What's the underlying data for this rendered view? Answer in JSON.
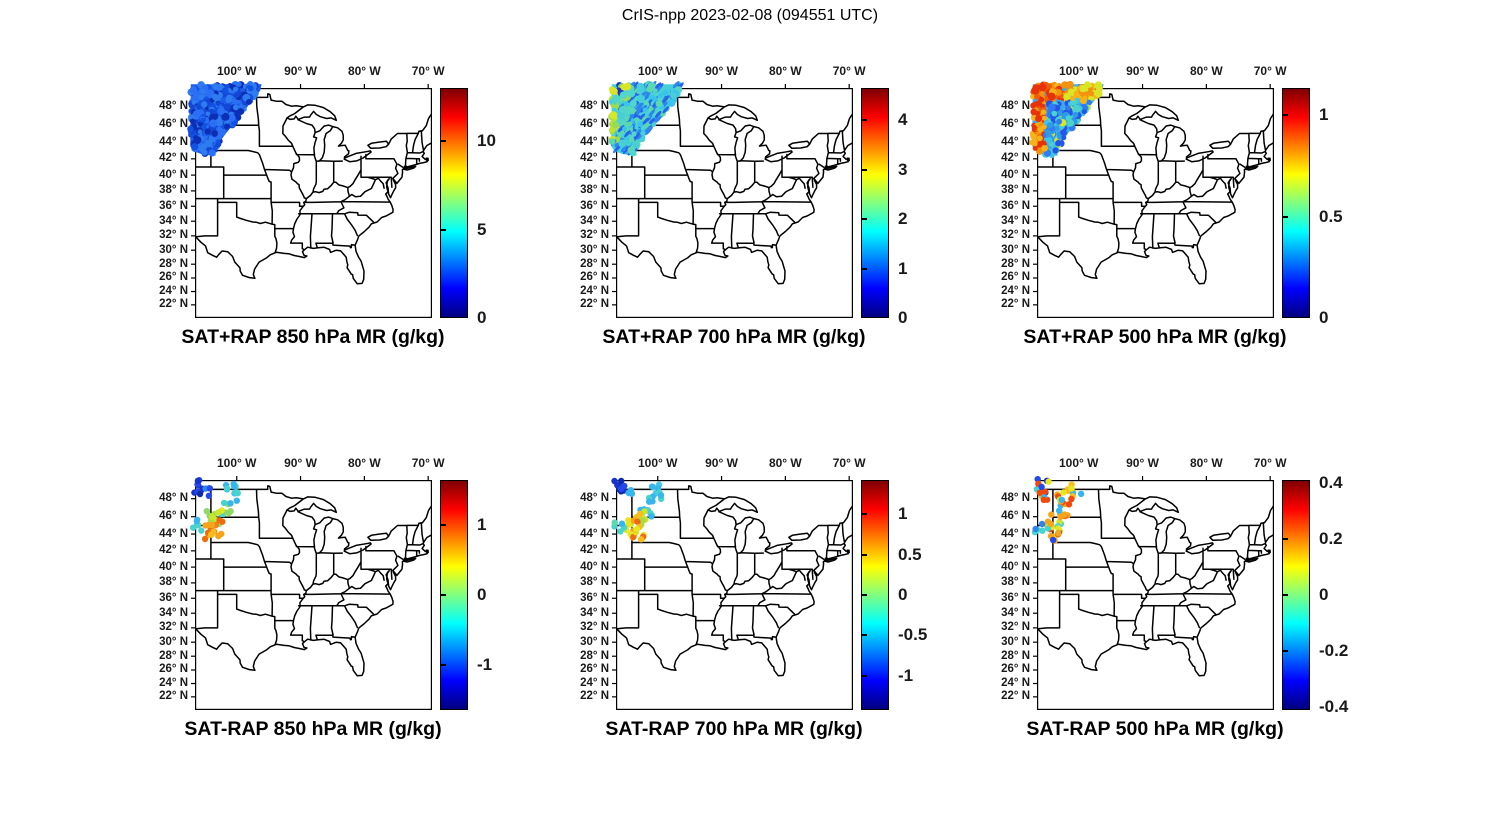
{
  "figure": {
    "title": "CrIS-npp 2023-02-08 (094551 UTC)",
    "background": "#ffffff"
  },
  "axes": {
    "lon_ticks": [
      {
        "label": "100° W",
        "lon": 100
      },
      {
        "label": "90° W",
        "lon": 90
      },
      {
        "label": "80° W",
        "lon": 80
      },
      {
        "label": "70° W",
        "lon": 70
      }
    ],
    "lat_ticks": [
      {
        "label": "48° N",
        "lat": 48
      },
      {
        "label": "46° N",
        "lat": 46
      },
      {
        "label": "44° N",
        "lat": 44
      },
      {
        "label": "42° N",
        "lat": 42
      },
      {
        "label": "40° N",
        "lat": 40
      },
      {
        "label": "38° N",
        "lat": 38
      },
      {
        "label": "36° N",
        "lat": 36
      },
      {
        "label": "34° N",
        "lat": 34
      },
      {
        "label": "32° N",
        "lat": 32
      },
      {
        "label": "30° N",
        "lat": 30
      },
      {
        "label": "28° N",
        "lat": 28
      },
      {
        "label": "26° N",
        "lat": 26
      },
      {
        "label": "24° N",
        "lat": 24
      },
      {
        "label": "22° N",
        "lat": 22
      }
    ],
    "map_extent": {
      "lon_west": 106.54,
      "lon_east": 69.4,
      "lat_south": 20,
      "lat_north": 50
    },
    "projection": "mercator"
  },
  "colors": {
    "colormap": "jet",
    "map_line": "#000000",
    "tick_label": "#1a1a1a"
  },
  "panels": [
    {
      "id": "sat-plus-rap-850",
      "title": "SAT+RAP 850 hPa MR (g/kg)",
      "row": 0,
      "col": 0,
      "kind": "swath",
      "clim": [
        0,
        13
      ],
      "cticks": [
        {
          "v": 0,
          "label": "0"
        },
        {
          "v": 5,
          "label": "5"
        },
        {
          "v": 10,
          "label": "10"
        }
      ]
    },
    {
      "id": "sat-plus-rap-700",
      "title": "SAT+RAP 700 hPa MR (g/kg)",
      "row": 0,
      "col": 1,
      "kind": "swath",
      "clim": [
        0,
        4.65
      ],
      "cticks": [
        {
          "v": 0,
          "label": "0"
        },
        {
          "v": 1,
          "label": "1"
        },
        {
          "v": 2,
          "label": "2"
        },
        {
          "v": 3,
          "label": "3"
        },
        {
          "v": 4,
          "label": "4"
        }
      ]
    },
    {
      "id": "sat-plus-rap-500",
      "title": "SAT+RAP 500 hPa MR (g/kg)",
      "row": 0,
      "col": 2,
      "kind": "swath",
      "clim": [
        0,
        1.135
      ],
      "cticks": [
        {
          "v": 0,
          "label": "0"
        },
        {
          "v": 0.5,
          "label": "0.5"
        },
        {
          "v": 1,
          "label": "1"
        }
      ]
    },
    {
      "id": "sat-minus-rap-850",
      "title": "SAT-RAP 850 hPa MR (g/kg)",
      "row": 1,
      "col": 0,
      "kind": "dots",
      "clim": [
        -1.64,
        1.64
      ],
      "cticks": [
        {
          "v": -1,
          "label": "-1"
        },
        {
          "v": 0,
          "label": "0"
        },
        {
          "v": 1,
          "label": "1"
        }
      ]
    },
    {
      "id": "sat-minus-rap-700",
      "title": "SAT-RAP 700 hPa MR (g/kg)",
      "row": 1,
      "col": 1,
      "kind": "dots",
      "clim": [
        -1.42,
        1.42
      ],
      "cticks": [
        {
          "v": -1,
          "label": "-1"
        },
        {
          "v": -0.5,
          "label": "-0.5"
        },
        {
          "v": 0,
          "label": "0"
        },
        {
          "v": 0.5,
          "label": "0.5"
        },
        {
          "v": 1,
          "label": "1"
        }
      ]
    },
    {
      "id": "sat-minus-rap-500",
      "title": "SAT-RAP 500 hPa MR (g/kg)",
      "row": 1,
      "col": 2,
      "kind": "dots",
      "clim": [
        -0.41,
        0.41
      ],
      "cticks": [
        {
          "v": -0.4,
          "label": "-0.4"
        },
        {
          "v": -0.2,
          "label": "-0.2"
        },
        {
          "v": 0,
          "label": "0"
        },
        {
          "v": 0.2,
          "label": "0.2"
        },
        {
          "v": 0.4,
          "label": "0.4"
        }
      ]
    }
  ],
  "chart_data": [
    {
      "type": "heatmap",
      "title": "SAT+RAP 850 hPa MR (g/kg)",
      "variable": "850 hPa water vapor mixing ratio retrieved from CrIS-npp + RAP",
      "map_extent": {
        "lon": [
          -106.5,
          -69.4
        ],
        "lat": [
          20,
          50
        ]
      },
      "projection": "Mercator",
      "x_tick_labels": [
        "100° W",
        "90° W",
        "80° W",
        "70° W"
      ],
      "y_tick_labels": [
        "48° N",
        "46° N",
        "44° N",
        "42° N",
        "40° N",
        "38° N",
        "36° N",
        "34° N",
        "32° N",
        "30° N",
        "28° N",
        "26° N",
        "24° N",
        "22° N"
      ],
      "colorbar": {
        "colormap": "jet",
        "clim": [
          0,
          13
        ],
        "ticks": [
          0,
          5,
          10
        ]
      },
      "swath": {
        "description": "solid blue satellite overpass swath over Montana / western North Dakota",
        "lon": [
          -107.2,
          -96.1
        ],
        "lat": [
          42.3,
          50.3
        ],
        "approx_values_g_per_kg": [
          1.5,
          3
        ]
      }
    },
    {
      "type": "heatmap",
      "title": "SAT+RAP 700 hPa MR (g/kg)",
      "variable": "700 hPa water vapor mixing ratio retrieved from CrIS-npp + RAP",
      "map_extent": {
        "lon": [
          -106.5,
          -69.4
        ],
        "lat": [
          20,
          50
        ]
      },
      "projection": "Mercator",
      "colorbar": {
        "colormap": "jet",
        "clim": [
          0,
          4.65
        ],
        "ticks": [
          0,
          1,
          2,
          3,
          4
        ]
      },
      "swath": {
        "description": "cyan swath with darker blue diagonal scan streaks and yellow-green patches on its western edge",
        "lon": [
          -107.2,
          -96.1
        ],
        "lat": [
          42.3,
          50.3
        ],
        "approx_values_g_per_kg": [
          1.2,
          3.2
        ]
      }
    },
    {
      "type": "heatmap",
      "title": "SAT+RAP 500 hPa MR (g/kg)",
      "variable": "500 hPa water vapor mixing ratio retrieved from CrIS-npp + RAP",
      "map_extent": {
        "lon": [
          -106.5,
          -69.4
        ],
        "lat": [
          20,
          50
        ]
      },
      "projection": "Mercator",
      "colorbar": {
        "colormap": "jet",
        "clim": [
          0,
          1.135
        ],
        "ticks": [
          0,
          0.5,
          1
        ]
      },
      "swath": {
        "description": "mottled swath: orange/red along western edge and top (with red blob), blue/cyan in southeastern interior",
        "lon": [
          -107.2,
          -96.1
        ],
        "lat": [
          42.3,
          50.3
        ],
        "approx_values_g_per_kg": [
          0.3,
          1.1
        ]
      }
    },
    {
      "type": "scatter",
      "title": "SAT-RAP 850 hPa MR (g/kg)",
      "variable": "satellite minus RAP 850 hPa mixing ratio difference",
      "map_extent": {
        "lon": [
          -106.5,
          -69.4
        ],
        "lat": [
          20,
          50
        ]
      },
      "projection": "Mercator",
      "colorbar": {
        "colormap": "jet",
        "clim": [
          -1.64,
          1.64
        ],
        "ticks": [
          -1,
          0,
          1
        ]
      },
      "clusters": [
        {
          "region": "dark blue dots, NW corner (-107 to -105, 48.5-50N)",
          "approx_value": -1.3
        },
        {
          "region": "cyan dots along top (-101.7 to -99.4, 47.7-49.7N)",
          "approx_value": -0.5
        },
        {
          "region": "cyan/green diagonal chain (-102.7 to -100.9, 46-47.8N)",
          "approx_value": -0.3
        },
        {
          "region": "yellow-green cluster (-104.8 to -101.9, 45-46.8N)",
          "approx_value": 0.2
        },
        {
          "region": "orange cluster (-105 to -102.2, 43.2-45.6N)",
          "approx_value": 0.9
        },
        {
          "region": "cyan dots on west frame (-107 to -105.1, 44.3-46N)",
          "approx_value": -0.5
        }
      ]
    },
    {
      "type": "scatter",
      "title": "SAT-RAP 700 hPa MR (g/kg)",
      "variable": "satellite minus RAP 700 hPa mixing ratio difference",
      "map_extent": {
        "lon": [
          -106.5,
          -69.4
        ],
        "lat": [
          20,
          50
        ]
      },
      "projection": "Mercator",
      "colorbar": {
        "colormap": "jet",
        "clim": [
          -1.42,
          1.42
        ],
        "ticks": [
          -1,
          -0.5,
          0,
          0.5,
          1
        ]
      },
      "clusters": [
        {
          "region": "dark blue dots, NW corner",
          "approx_value": -1.2
        },
        {
          "region": "cyan dots along top and chain",
          "approx_value": -0.4
        },
        {
          "region": "yellow-green middle cluster",
          "approx_value": 0.3
        },
        {
          "region": "orange/yellow lower cluster",
          "approx_value": 0.7
        },
        {
          "region": "cyan dots on west frame 44-45.5N",
          "approx_value": -0.4
        }
      ]
    },
    {
      "type": "scatter",
      "title": "SAT-RAP 500 hPa MR (g/kg)",
      "variable": "satellite minus RAP 500 hPa mixing ratio difference",
      "map_extent": {
        "lon": [
          -106.5,
          -69.4
        ],
        "lat": [
          20,
          50
        ]
      },
      "projection": "Mercator",
      "colorbar": {
        "colormap": "jet",
        "clim": [
          -0.41,
          0.41
        ],
        "ticks": [
          -0.4,
          -0.2,
          0,
          0.2,
          0.4
        ]
      },
      "clusters": [
        {
          "region": "speckled mix of cyan / yellow / orange / red / dark blue dots over whole Montana-North Dakota swath (-107 to -99.5, 43-50N)",
          "approx_value_range": [
            -0.4,
            0.4
          ]
        }
      ]
    }
  ]
}
